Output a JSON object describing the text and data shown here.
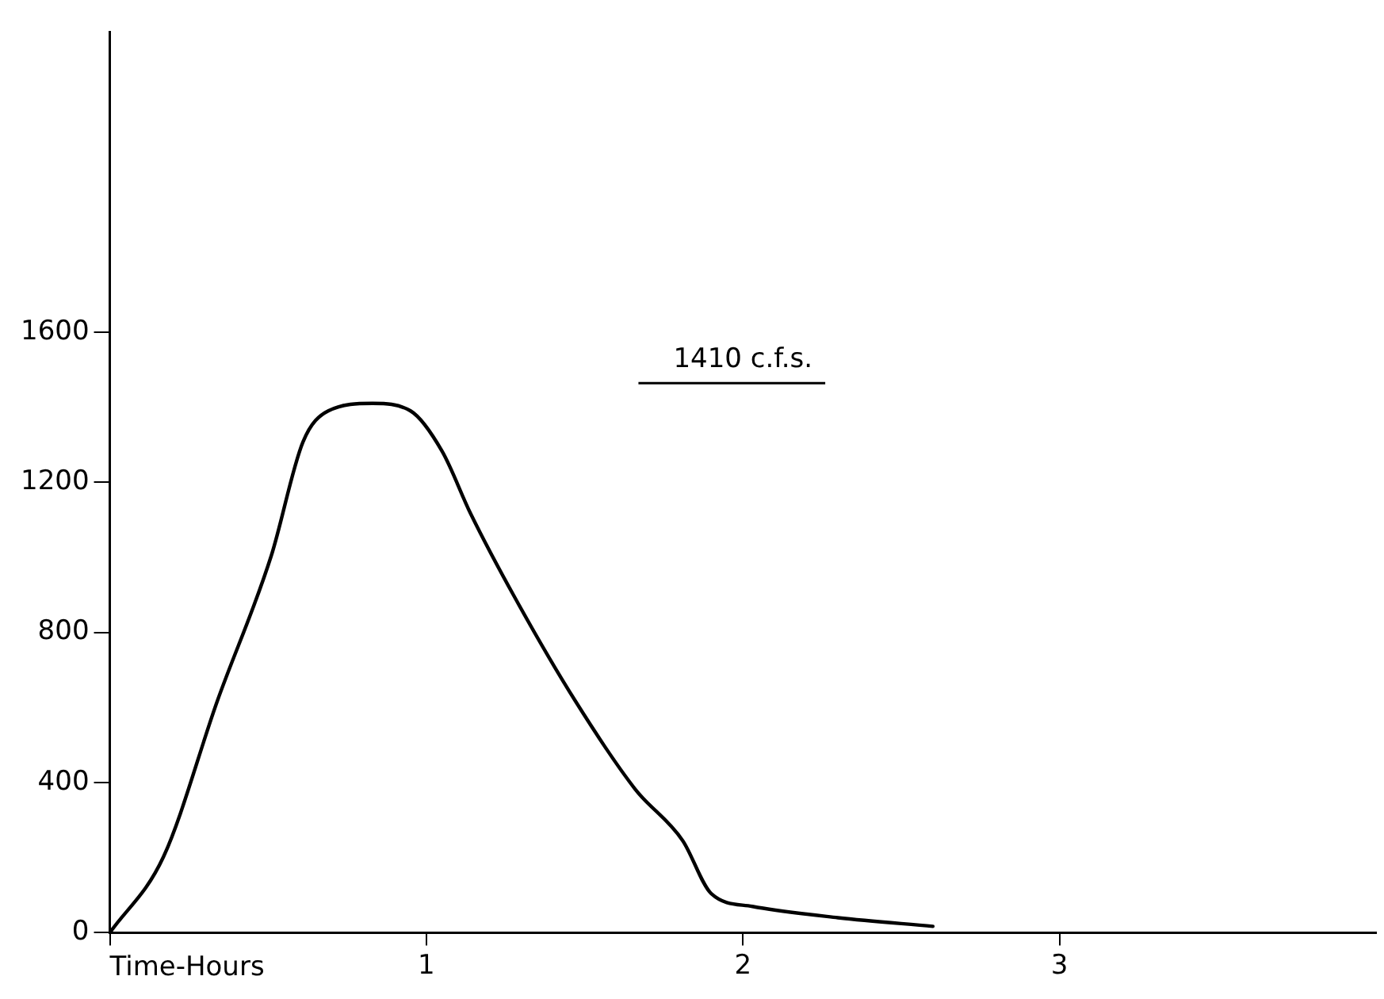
{
  "chart_data": {
    "type": "line",
    "xlabel": "Time-Hours",
    "x": [
      0,
      0.17,
      0.34,
      0.51,
      0.61,
      0.69,
      0.83,
      0.95,
      1.05,
      1.14,
      1.28,
      1.47,
      1.66,
      1.81,
      1.9,
      2.03,
      2.3,
      2.6
    ],
    "series": [
      {
        "color": "#000000",
        "values": [
          0,
          203,
          618,
          1004,
          1307,
          1390,
          1410,
          1390,
          1282,
          1116,
          892,
          618,
          382,
          245,
          104,
          70,
          40,
          17
        ]
      }
    ],
    "xlim": [
      0,
      4
    ],
    "xticks": [
      {
        "value": 0,
        "label": null
      },
      1,
      2,
      3
    ],
    "ylim": [
      0,
      2400
    ],
    "yticks": [
      0,
      400,
      800,
      1200,
      1600
    ],
    "annotations": [
      "1410 c.f.s."
    ],
    "grid": false,
    "legend": false,
    "marker": "none",
    "line_style": "solid"
  }
}
